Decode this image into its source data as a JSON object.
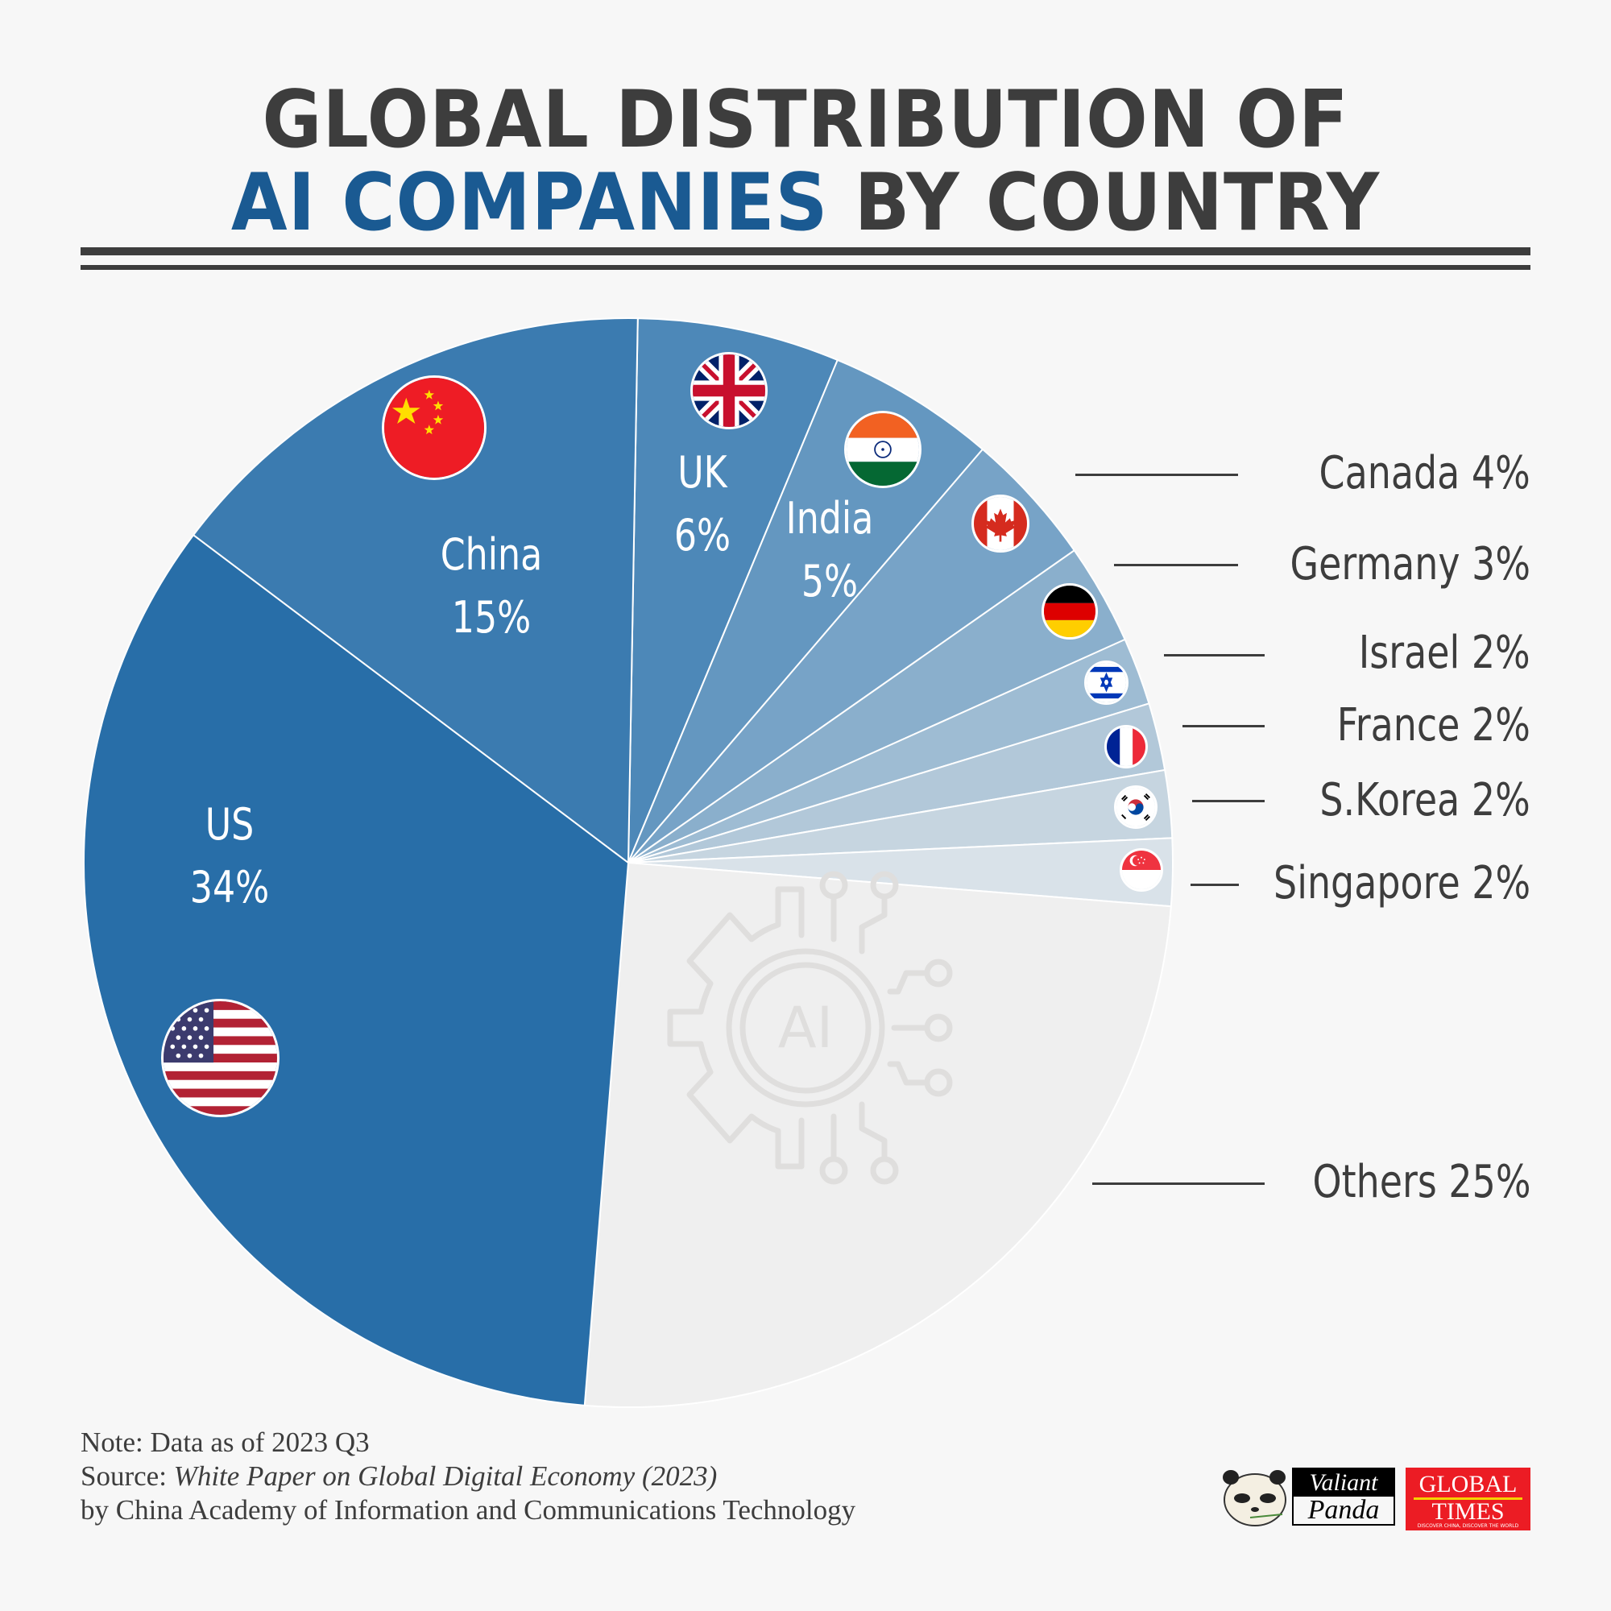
{
  "title": {
    "line1": "GLOBAL DISTRIBUTION OF",
    "line2_accent": "AI COMPANIES",
    "line2_rest": " BY COUNTRY",
    "accent_color": "#1a5a92",
    "text_color": "#3d3d3d"
  },
  "chart_data": {
    "type": "pie",
    "title": "Global Distribution of AI Companies by Country",
    "unit": "%",
    "start_angle_deg": 1,
    "direction": "clockwise",
    "slices": [
      {
        "name": "UK",
        "value": 6,
        "color": "#4d88b8",
        "label": "UK",
        "pct": "6%",
        "placement": "inside"
      },
      {
        "name": "India",
        "value": 5,
        "color": "#6497c0",
        "label": "India",
        "pct": "5%",
        "placement": "inside"
      },
      {
        "name": "Canada",
        "value": 4,
        "color": "#77a3c7",
        "label": "Canada 4%",
        "placement": "legend"
      },
      {
        "name": "Germany",
        "value": 3,
        "color": "#8aafcc",
        "label": "Germany 3%",
        "placement": "legend"
      },
      {
        "name": "Israel",
        "value": 2,
        "color": "#9ebcd3",
        "label": "Israel 2%",
        "placement": "legend"
      },
      {
        "name": "France",
        "value": 2,
        "color": "#b2c8d9",
        "label": "France 2%",
        "placement": "legend"
      },
      {
        "name": "S.Korea",
        "value": 2,
        "color": "#c6d5e0",
        "label": "S.Korea 2%",
        "placement": "legend"
      },
      {
        "name": "Singapore",
        "value": 2,
        "color": "#d9e2e9",
        "label": "Singapore 2%",
        "placement": "legend"
      },
      {
        "name": "Others",
        "value": 25,
        "color": "#efefef",
        "label": "Others 25%",
        "placement": "legend"
      },
      {
        "name": "US",
        "value": 34,
        "color": "#286ea8",
        "label": "US",
        "pct": "34%",
        "placement": "inside"
      },
      {
        "name": "China",
        "value": 15,
        "color": "#3b7bb0",
        "label": "China",
        "pct": "15%",
        "placement": "inside"
      }
    ],
    "center": [
      780,
      1071
    ],
    "radius": 676,
    "degrees_per_percent": 3.6
  },
  "inside_labels": {
    "us": {
      "name": "US",
      "pct": "34%"
    },
    "china": {
      "name": "China",
      "pct": "15%"
    },
    "uk": {
      "name": "UK",
      "pct": "6%"
    },
    "india": {
      "name": "India",
      "pct": "5%"
    }
  },
  "legend": {
    "canada": "Canada 4%",
    "germany": "Germany 3%",
    "israel": "Israel 2%",
    "france": "France 2%",
    "skorea": "S.Korea 2%",
    "singapore": "Singapore 2%",
    "others": "Others 25%"
  },
  "icons": {
    "others_icon": "ai-gear-circuit-icon",
    "others_icon_text": "AI"
  },
  "footer": {
    "note": "Note: Data as of 2023 Q3",
    "source_prefix": "Source: ",
    "source_title": "White Paper on Global Digital Economy (2023)",
    "source_by": "by China Academy of Information and Communications Technology"
  },
  "logos": {
    "valiant_top": "Valiant",
    "valiant_bottom": "Panda",
    "gt_top": "GLOBAL",
    "gt_bottom": "TIMES",
    "gt_tagline": "DISCOVER CHINA, DISCOVER THE WORLD"
  }
}
